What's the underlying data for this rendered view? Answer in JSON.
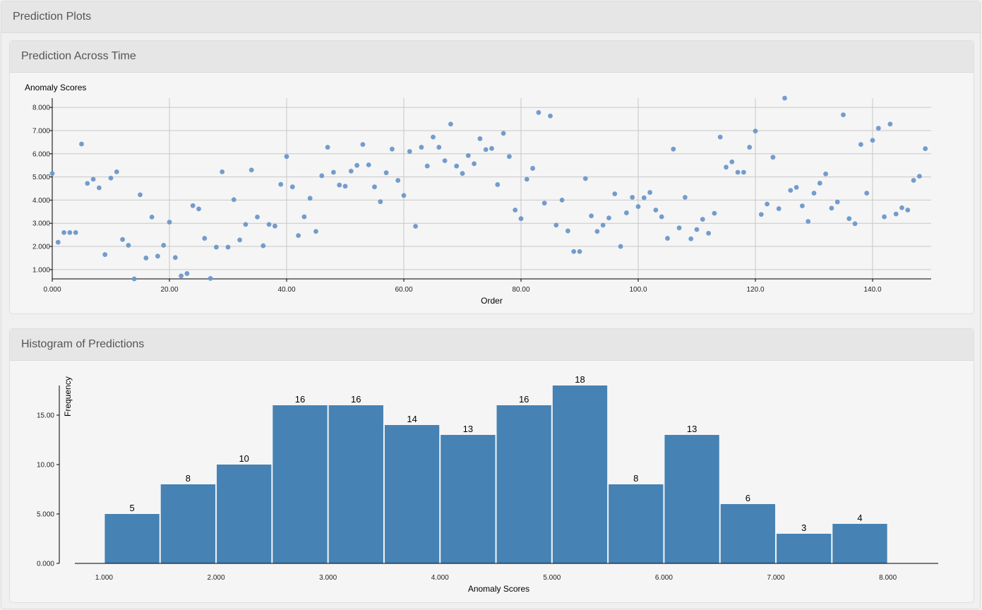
{
  "panel": {
    "title": "Prediction Plots"
  },
  "scatter": {
    "title": "Prediction Across Time",
    "chart_data": {
      "type": "scatter",
      "ylabel": "Anomaly Scores",
      "xlabel": "Order",
      "xlim": [
        0,
        150
      ],
      "ylim": [
        0.6,
        8.4
      ],
      "x_ticks": [
        0,
        20,
        40,
        60,
        80,
        100,
        120,
        140
      ],
      "x_tick_labels": [
        "0.000",
        "20.00",
        "40.00",
        "60.00",
        "80.00",
        "100.0",
        "120.0",
        "140.0"
      ],
      "y_ticks": [
        1,
        2,
        3,
        4,
        5,
        6,
        7,
        8
      ],
      "y_tick_labels": [
        "1.000",
        "2.000",
        "3.000",
        "4.000",
        "5.000",
        "6.000",
        "7.000",
        "8.000"
      ],
      "grid": true,
      "color": "#6b97c9",
      "y": [
        5.15,
        2.18,
        2.6,
        2.6,
        2.6,
        6.42,
        4.72,
        4.9,
        4.53,
        1.65,
        4.95,
        5.22,
        2.3,
        2.05,
        0.6,
        4.23,
        1.5,
        3.27,
        1.58,
        2.05,
        3.05,
        1.52,
        0.73,
        0.83,
        3.76,
        3.62,
        2.35,
        0.62,
        1.97,
        5.22,
        1.97,
        4.02,
        2.28,
        2.95,
        5.3,
        3.27,
        2.03,
        2.95,
        2.88,
        4.68,
        5.88,
        4.57,
        2.47,
        3.28,
        4.08,
        2.65,
        5.05,
        6.28,
        5.2,
        4.65,
        4.6,
        5.25,
        5.5,
        6.4,
        5.52,
        4.57,
        3.93,
        5.18,
        6.2,
        4.85,
        4.2,
        6.1,
        2.87,
        6.28,
        5.47,
        6.72,
        6.28,
        5.7,
        7.28,
        5.47,
        5.15,
        5.92,
        5.57,
        6.65,
        6.18,
        6.23,
        4.67,
        6.88,
        5.88,
        3.57,
        3.2,
        4.9,
        5.37,
        7.78,
        3.87,
        7.63,
        2.92,
        4.0,
        2.67,
        1.78,
        1.78,
        4.93,
        3.32,
        2.65,
        2.92,
        3.23,
        4.27,
        2.0,
        3.45,
        4.12,
        3.72,
        4.1,
        4.33,
        3.57,
        3.28,
        2.35,
        6.2,
        2.8,
        4.12,
        2.33,
        2.73,
        3.17,
        2.57,
        3.43,
        6.72,
        5.42,
        5.65,
        5.2,
        5.2,
        6.28,
        6.98,
        3.38,
        3.83,
        5.85,
        3.63,
        8.4,
        4.42,
        4.55,
        3.75,
        3.08,
        4.3,
        4.73,
        5.13,
        3.65,
        3.92,
        7.68,
        3.2,
        2.98,
        6.4,
        4.3,
        6.58,
        7.1,
        3.28,
        7.28,
        3.4,
        3.67,
        3.57,
        4.85,
        5.03,
        6.22
      ]
    }
  },
  "histogram": {
    "title": "Histogram of Predictions",
    "chart_data": {
      "type": "bar",
      "xlabel": "Anomaly Scores",
      "ylabel": "Frequency",
      "xlim": [
        0.6,
        8.45
      ],
      "ylim": [
        0,
        18
      ],
      "bin_width": 0.5,
      "bin_starts": [
        1.0,
        1.5,
        2.0,
        2.5,
        3.0,
        3.5,
        4.0,
        4.5,
        5.0,
        5.5,
        6.0,
        6.5,
        7.0,
        7.5
      ],
      "values": [
        5,
        8,
        10,
        16,
        16,
        14,
        13,
        16,
        18,
        8,
        13,
        6,
        3,
        4
      ],
      "x_ticks": [
        1,
        2,
        3,
        4,
        5,
        6,
        7,
        8
      ],
      "x_tick_labels": [
        "1.000",
        "2.000",
        "3.000",
        "4.000",
        "5.000",
        "6.000",
        "7.000",
        "8.000"
      ],
      "y_ticks": [
        0,
        5,
        10,
        15
      ],
      "y_tick_labels": [
        "0.000",
        "5.000",
        "10.00",
        "15.00"
      ],
      "color": "#4682b4"
    }
  }
}
